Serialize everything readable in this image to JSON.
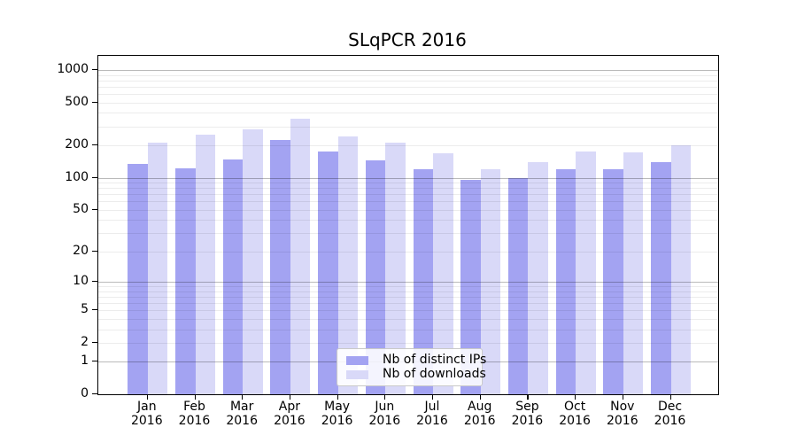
{
  "chart_data": {
    "type": "bar",
    "title": "SLqPCR 2016",
    "categories": [
      "Jan",
      "Feb",
      "Mar",
      "Apr",
      "May",
      "Jun",
      "Jul",
      "Aug",
      "Sep",
      "Oct",
      "Nov",
      "Dec"
    ],
    "category_year": "2016",
    "series": [
      {
        "name": "Nb of distinct IPs",
        "color": "#a3a3f2",
        "values": [
          134,
          122,
          148,
          224,
          175,
          145,
          120,
          95,
          99,
          120,
          119,
          140
        ]
      },
      {
        "name": "Nb of downloads",
        "color": "#d9d9f8",
        "values": [
          212,
          251,
          283,
          352,
          242,
          212,
          169,
          120,
          139,
          175,
          173,
          201
        ]
      }
    ],
    "xlabel": "",
    "ylabel": "",
    "yscale": "log10(1+v)",
    "ylim": [
      0,
      1354
    ],
    "yticks": [
      1000,
      500,
      200,
      100,
      50,
      20,
      10,
      5,
      2,
      1,
      0
    ],
    "grid": "horizontal, log minor lines light, decade lines (1,10,100,1000) gray",
    "legend_position": "lower center"
  }
}
